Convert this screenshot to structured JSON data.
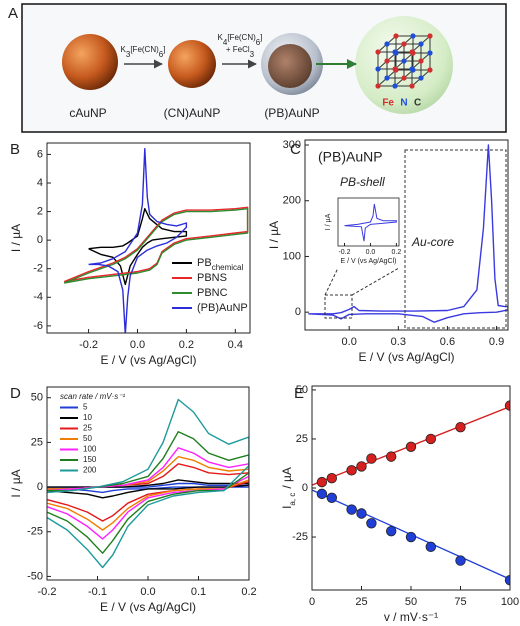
{
  "scheme": {
    "panel_label": "A",
    "reagent_1": [
      "K",
      "3",
      "[Fe(CN)",
      "6",
      "]"
    ],
    "reagent_2": [
      "K",
      "4",
      "[Fe(CN)",
      "6",
      "]"
    ],
    "reagent_3": [
      "+ FeCl",
      "3"
    ],
    "labels": [
      "cAuNP",
      "(CN)AuNP",
      "(PB)AuNP"
    ],
    "lattice_atoms": [
      "Fe",
      "N",
      "C"
    ]
  },
  "chart_data": [
    {
      "type": "line",
      "panel_label": "B",
      "xlabel": "E / V (vs Ag/AgCl)",
      "ylabel": "I / µA",
      "xlim": [
        -0.37,
        0.46
      ],
      "ylim": [
        -6.5,
        6.8
      ],
      "xticks": [
        -0.2,
        {
          "value": 0,
          "label": "0.0"
        },
        0.2,
        0.4
      ],
      "yticks": [
        -6,
        -4,
        -2,
        0,
        2,
        4,
        6
      ],
      "legend": "lower right",
      "series": [
        {
          "name": "PB",
          "name_subscript": "chemical",
          "color": "#000000",
          "x": [
            -0.2,
            -0.15,
            -0.1,
            -0.06,
            -0.04,
            0.0,
            0.02,
            0.03,
            0.05,
            0.1,
            0.15,
            0.2,
            0.2,
            0.15,
            0.1,
            0.06,
            0.04,
            0.02,
            0.0,
            -0.03,
            -0.05,
            -0.07,
            -0.1,
            -0.15,
            -0.2
          ],
          "values": [
            -0.6,
            -0.5,
            -0.5,
            -0.4,
            -0.2,
            0.3,
            1.5,
            2.2,
            1.5,
            0.8,
            0.6,
            0.6,
            0.3,
            0.2,
            0.1,
            0.0,
            -0.2,
            -0.5,
            -1.0,
            -1.8,
            -3.1,
            -1.8,
            -1.2,
            -1.0,
            -0.6
          ]
        },
        {
          "name": "PBNS",
          "color": "#e8262a",
          "x": [
            -0.3,
            -0.2,
            -0.1,
            -0.05,
            0.0,
            0.05,
            0.1,
            0.15,
            0.2,
            0.3,
            0.4,
            0.45,
            0.45,
            0.4,
            0.3,
            0.2,
            0.15,
            0.1,
            0.08,
            0.05,
            0.0,
            -0.1,
            -0.2,
            -0.3
          ],
          "values": [
            -2.9,
            -2.2,
            -1.6,
            -1.2,
            -0.6,
            0.4,
            1.4,
            1.9,
            2.1,
            2.1,
            2.2,
            2.3,
            0.6,
            0.5,
            0.3,
            0.1,
            -0.2,
            -0.8,
            -1.6,
            -2.0,
            -2.2,
            -2.4,
            -2.6,
            -2.9
          ]
        },
        {
          "name": "PBNC",
          "color": "#2e8b2e",
          "x": [
            -0.3,
            -0.2,
            -0.1,
            -0.05,
            0.0,
            0.05,
            0.1,
            0.15,
            0.2,
            0.3,
            0.4,
            0.45,
            0.45,
            0.4,
            0.3,
            0.2,
            0.15,
            0.1,
            0.08,
            0.05,
            0.0,
            -0.1,
            -0.2,
            -0.3
          ],
          "values": [
            -3.0,
            -2.3,
            -1.7,
            -1.3,
            -0.7,
            0.3,
            1.3,
            1.8,
            2.0,
            2.0,
            2.1,
            2.2,
            0.5,
            0.4,
            0.2,
            0.0,
            -0.3,
            -0.9,
            -1.7,
            -2.1,
            -2.3,
            -2.5,
            -2.7,
            -3.0
          ]
        },
        {
          "name": "(PB)AuNP",
          "color": "#2c2cd8",
          "x": [
            -0.2,
            -0.15,
            -0.1,
            -0.05,
            0.0,
            0.02,
            0.03,
            0.04,
            0.05,
            0.08,
            0.12,
            0.16,
            0.2,
            0.2,
            0.16,
            0.12,
            0.08,
            0.04,
            0.0,
            -0.03,
            -0.04,
            -0.05,
            -0.06,
            -0.08,
            -0.12,
            -0.16,
            -0.2
          ],
          "values": [
            -1.7,
            -1.6,
            -1.3,
            -0.8,
            0.5,
            2.5,
            6.4,
            3.0,
            1.8,
            1.3,
            1.1,
            1.0,
            1.2,
            0.9,
            0.2,
            -0.2,
            -0.4,
            -0.7,
            -1.2,
            -2.5,
            -4.0,
            -6.6,
            -3.5,
            -2.2,
            -1.8,
            -1.7,
            -1.7
          ]
        }
      ]
    },
    {
      "type": "line",
      "panel_label": "C",
      "xlabel": "E / V (vs Ag/AgCl)",
      "ylabel": "I / µA",
      "xlim": [
        -0.27,
        0.97
      ],
      "ylim": [
        -32,
        309
      ],
      "xticks": [
        {
          "value": 0,
          "label": "0.0"
        },
        0.3,
        0.6,
        0.9
      ],
      "yticks": [
        0,
        100,
        200,
        300
      ],
      "annotations": [
        "(PB)AuNP",
        "PB-shell",
        "Au-core"
      ],
      "series": [
        {
          "color": "#3a3ae0",
          "x": [
            -0.25,
            -0.1,
            -0.05,
            0.0,
            0.03,
            0.06,
            0.2,
            0.4,
            0.6,
            0.7,
            0.78,
            0.82,
            0.85,
            0.87,
            0.89,
            0.91,
            0.95,
            0.97,
            0.97,
            0.9,
            0.8,
            0.7,
            0.6,
            0.52,
            0.45,
            0.3,
            0.1,
            0.0,
            -0.05,
            -0.1,
            -0.25
          ],
          "values": [
            -3,
            -3,
            -1,
            5,
            10,
            3,
            2,
            2,
            3,
            10,
            40,
            150,
            300,
            200,
            60,
            12,
            10,
            10,
            4,
            0,
            -1,
            -3,
            -10,
            -18,
            -8,
            -3,
            -3,
            -4,
            -12,
            -5,
            -3
          ]
        }
      ],
      "inset": {
        "xlabel": "E / V (vs Ag/AgCl)",
        "ylabel": "I / µA",
        "xlim": [
          -0.25,
          0.22
        ],
        "ylim": [
          -20,
          20
        ],
        "xticks": [
          -0.2,
          {
            "value": 0,
            "label": "0.0"
          },
          0.2
        ],
        "color": "#3a3ae0",
        "x": [
          -0.2,
          -0.1,
          0.0,
          0.02,
          0.03,
          0.05,
          0.1,
          0.2,
          0.2,
          0.1,
          0.0,
          -0.04,
          -0.05,
          -0.07,
          -0.2
        ],
        "values": [
          -3,
          -2,
          0,
          5,
          15,
          3,
          1,
          1,
          0,
          -1,
          -2,
          -5,
          -16,
          -4,
          -3
        ]
      }
    },
    {
      "type": "line",
      "panel_label": "D",
      "xlabel": "E / V (vs Ag/AgCl)",
      "ylabel": "I / µA",
      "xlim": [
        -0.2,
        0.2
      ],
      "ylim": [
        -52,
        56
      ],
      "xticks": [
        -0.2,
        -0.1,
        {
          "value": 0,
          "label": "0.0"
        },
        0.1,
        0.2
      ],
      "yticks": [
        -50,
        -25,
        0,
        25,
        50
      ],
      "legend": "upper left",
      "legend_title": "scan rate / mV·s⁻¹",
      "series": [
        {
          "name": "5",
          "color": "#1f3fd6",
          "x": [
            -0.2,
            -0.15,
            -0.1,
            -0.05,
            0.0,
            0.03,
            0.06,
            0.09,
            0.12,
            0.16,
            0.2,
            0.2,
            0.15,
            0.1,
            0.05,
            0.0,
            -0.04,
            -0.07,
            -0.09,
            -0.12,
            -0.16,
            -0.2
          ],
          "values": [
            0,
            0,
            0,
            0,
            0,
            1,
            2,
            2,
            1,
            1,
            1,
            0,
            0,
            0,
            0,
            -1,
            -1,
            -2,
            -3,
            -2,
            -1,
            -1
          ]
        },
        {
          "name": "10",
          "color": "#000000",
          "x": [
            -0.2,
            -0.15,
            -0.1,
            -0.05,
            0.0,
            0.03,
            0.06,
            0.09,
            0.12,
            0.16,
            0.2,
            0.2,
            0.15,
            0.1,
            0.05,
            0.0,
            -0.04,
            -0.07,
            -0.09,
            -0.12,
            -0.16,
            -0.2
          ],
          "values": [
            0,
            0,
            0,
            0,
            1,
            2,
            4,
            3,
            2,
            2,
            2,
            1,
            0,
            0,
            -1,
            -1,
            -3,
            -5,
            -6,
            -4,
            -3,
            -2
          ]
        },
        {
          "name": "25",
          "color": "#e41a1c",
          "x": [
            -0.2,
            -0.15,
            -0.1,
            -0.05,
            0.0,
            0.03,
            0.06,
            0.09,
            0.12,
            0.16,
            0.2,
            0.2,
            0.15,
            0.1,
            0.05,
            0.0,
            -0.04,
            -0.07,
            -0.09,
            -0.12,
            -0.16,
            -0.2
          ],
          "values": [
            -1,
            -1,
            0,
            1,
            2,
            6,
            13,
            11,
            8,
            7,
            8,
            3,
            -1,
            -1,
            -2,
            -4,
            -9,
            -16,
            -19,
            -14,
            -10,
            -7
          ]
        },
        {
          "name": "50",
          "color": "#f07c00",
          "x": [
            -0.2,
            -0.15,
            -0.1,
            -0.05,
            0.0,
            0.03,
            0.06,
            0.09,
            0.12,
            0.16,
            0.2,
            0.2,
            0.15,
            0.1,
            0.05,
            0.0,
            -0.04,
            -0.07,
            -0.09,
            -0.12,
            -0.16,
            -0.2
          ],
          "values": [
            -1,
            -1,
            0,
            1,
            3,
            9,
            17,
            15,
            11,
            9,
            10,
            4,
            -1,
            -1,
            -2,
            -5,
            -12,
            -20,
            -24,
            -18,
            -12,
            -9
          ]
        },
        {
          "name": "100",
          "color": "#ff20ff",
          "x": [
            -0.2,
            -0.15,
            -0.1,
            -0.05,
            0.0,
            0.03,
            0.06,
            0.09,
            0.12,
            0.16,
            0.2,
            0.2,
            0.15,
            0.1,
            0.05,
            0.0,
            -0.04,
            -0.07,
            -0.09,
            -0.12,
            -0.16,
            -0.2
          ],
          "values": [
            -2,
            -1,
            0,
            1,
            4,
            11,
            22,
            19,
            14,
            11,
            13,
            6,
            -1,
            -2,
            -3,
            -6,
            -14,
            -24,
            -29,
            -22,
            -15,
            -11
          ]
        },
        {
          "name": "150",
          "color": "#1e7f1e",
          "x": [
            -0.2,
            -0.15,
            -0.1,
            -0.05,
            0.0,
            0.03,
            0.06,
            0.09,
            0.12,
            0.16,
            0.2,
            0.2,
            0.15,
            0.1,
            0.05,
            0.0,
            -0.04,
            -0.07,
            -0.09,
            -0.12,
            -0.16,
            -0.2
          ],
          "values": [
            -2,
            -2,
            0,
            2,
            6,
            16,
            31,
            27,
            19,
            15,
            18,
            8,
            -2,
            -2,
            -4,
            -8,
            -18,
            -30,
            -37,
            -28,
            -19,
            -14
          ]
        },
        {
          "name": "200",
          "color": "#1f9a9a",
          "x": [
            -0.2,
            -0.15,
            -0.1,
            -0.05,
            0.0,
            0.03,
            0.06,
            0.09,
            0.12,
            0.16,
            0.2,
            0.2,
            0.15,
            0.1,
            0.05,
            0.0,
            -0.04,
            -0.07,
            -0.09,
            -0.12,
            -0.16,
            -0.2
          ],
          "values": [
            -3,
            -2,
            0,
            3,
            10,
            25,
            49,
            42,
            30,
            24,
            28,
            12,
            -2,
            -3,
            -5,
            -10,
            -22,
            -38,
            -45,
            -35,
            -24,
            -17
          ]
        }
      ]
    },
    {
      "type": "scatter",
      "panel_label": "E",
      "xlabel": "v / mV·s⁻¹",
      "ylabel": "I",
      "ylabel_subscript": "a, c",
      "ylabel_suffix": "/ µA",
      "xlim": [
        0,
        100
      ],
      "ylim": [
        -52,
        52
      ],
      "xticks": [
        0,
        25,
        50,
        75,
        100
      ],
      "yticks": [
        -25,
        0,
        25,
        50
      ],
      "series": [
        {
          "color": "#d62020",
          "x": [
            5,
            10,
            20,
            25,
            30,
            40,
            50,
            60,
            75,
            100
          ],
          "values": [
            3,
            5,
            9,
            11,
            15,
            16,
            21,
            25,
            31,
            42
          ]
        },
        {
          "color": "#1f3fd6",
          "x": [
            5,
            10,
            20,
            25,
            30,
            40,
            50,
            60,
            75,
            100
          ],
          "values": [
            -3,
            -5,
            -11,
            -13,
            -18,
            -22,
            -25,
            -30,
            -37,
            -47
          ]
        }
      ],
      "fits": [
        {
          "color": "#d62020",
          "x": [
            0,
            100
          ],
          "values": [
            1.5,
            41.5
          ]
        },
        {
          "color": "#1f3fd6",
          "x": [
            0,
            100
          ],
          "values": [
            -1,
            -46.5
          ]
        }
      ]
    }
  ]
}
